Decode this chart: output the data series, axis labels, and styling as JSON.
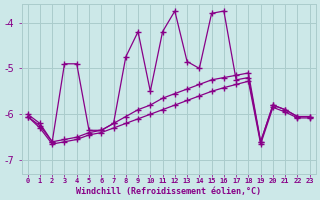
{
  "background_color": "#cce8e8",
  "grid_color": "#aacccc",
  "line_color": "#880088",
  "xlim": [
    -0.5,
    23.5
  ],
  "ylim": [
    -7.3,
    -3.6
  ],
  "yticks": [
    -7,
    -6,
    -5,
    -4
  ],
  "xtick_labels": [
    "0",
    "1",
    "2",
    "3",
    "4",
    "5",
    "6",
    "7",
    "8",
    "9",
    "10",
    "11",
    "12",
    "13",
    "14",
    "15",
    "16",
    "17",
    "18",
    "19",
    "20",
    "21",
    "22",
    "23"
  ],
  "xlabel": "Windchill (Refroidissement éolien,°C)",
  "xlabel_color": "#880088",
  "tick_color": "#880088",
  "series0_x": [
    0,
    1,
    2,
    3,
    4,
    5,
    6,
    7,
    8,
    9,
    10,
    11,
    12,
    13,
    14,
    15,
    16,
    17,
    18,
    19,
    20,
    21,
    22,
    23
  ],
  "series0_y": [
    -6.0,
    -6.2,
    -6.6,
    -4.9,
    -4.9,
    -6.35,
    -6.35,
    -6.2,
    -4.75,
    -4.2,
    -5.5,
    -4.2,
    -3.75,
    -4.85,
    -5.0,
    -3.8,
    -3.75,
    -5.25,
    -5.2,
    -6.6,
    -5.8,
    -5.9,
    -6.05,
    -6.05
  ],
  "series1_x": [
    0,
    1,
    2,
    3,
    4,
    5,
    6,
    7,
    8,
    9,
    10,
    11,
    12,
    13,
    14,
    15,
    16,
    17,
    18,
    19,
    20,
    21,
    22,
    23
  ],
  "series1_y": [
    -6.05,
    -6.25,
    -6.6,
    -6.55,
    -6.5,
    -6.4,
    -6.35,
    -6.2,
    -6.05,
    -5.9,
    -5.8,
    -5.65,
    -5.55,
    -5.45,
    -5.35,
    -5.25,
    -5.2,
    -5.15,
    -5.1,
    -6.6,
    -5.8,
    -5.9,
    -6.05,
    -6.05
  ],
  "series2_x": [
    0,
    1,
    2,
    3,
    4,
    5,
    6,
    7,
    8,
    9,
    10,
    11,
    12,
    13,
    14,
    15,
    16,
    17,
    18,
    19,
    20,
    21,
    22,
    23
  ],
  "series2_y": [
    -6.05,
    -6.3,
    -6.65,
    -6.6,
    -6.55,
    -6.45,
    -6.4,
    -6.3,
    -6.2,
    -6.1,
    -6.0,
    -5.9,
    -5.8,
    -5.7,
    -5.6,
    -5.5,
    -5.42,
    -5.35,
    -5.28,
    -6.65,
    -5.85,
    -5.95,
    -6.08,
    -6.08
  ]
}
